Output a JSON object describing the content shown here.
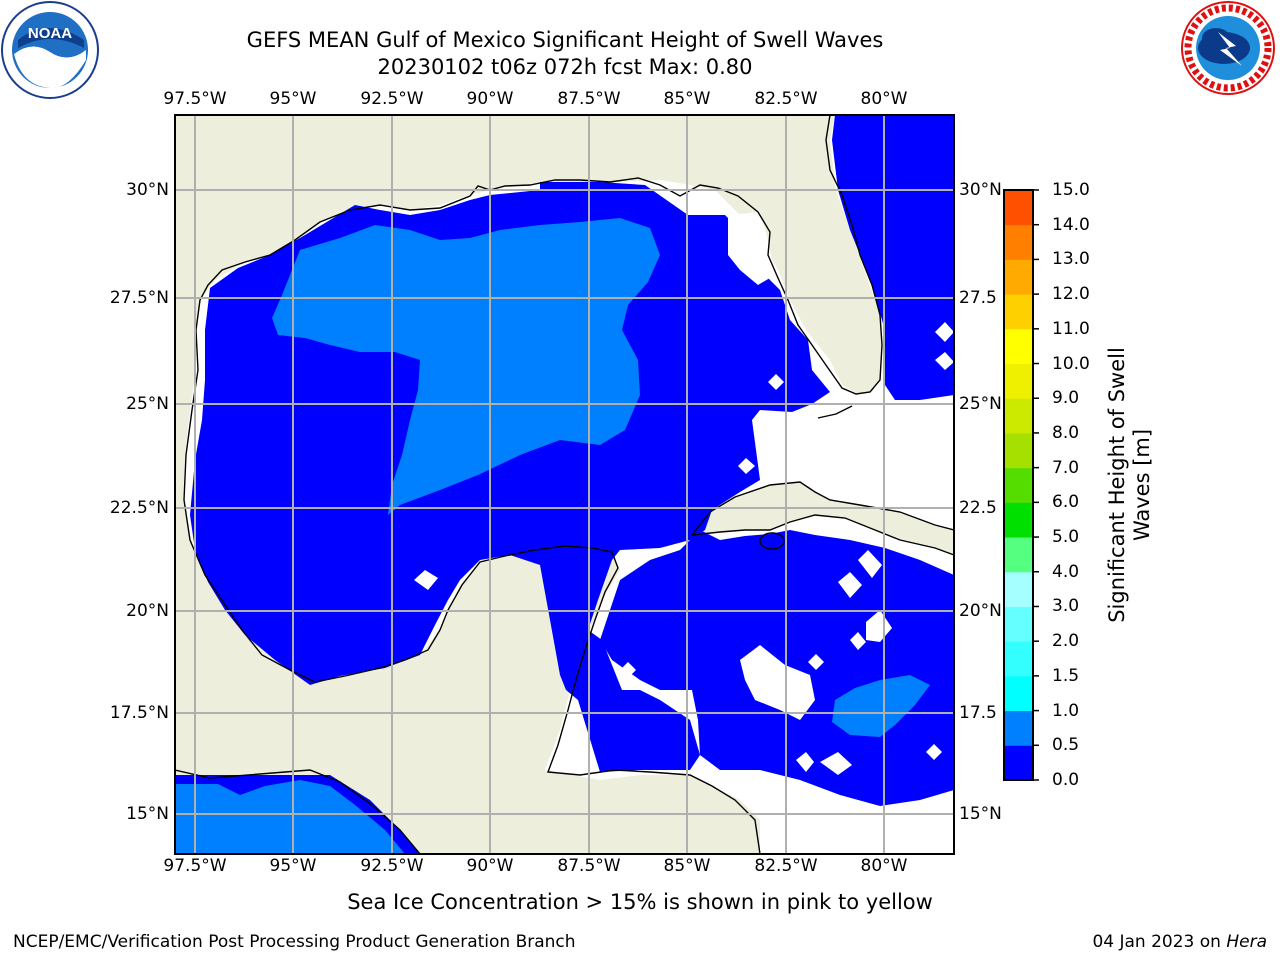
{
  "header": {
    "title_line1": "GEFS MEAN Gulf of Mexico Significant Height of Swell Waves",
    "title_line2": "20230102 t06z 072h fcst   Max: 0.80"
  },
  "logos": {
    "left": "NOAA",
    "left_ring_text": "NATIONAL OCEANIC AND ATMOSPHERIC ADMINISTRATION · U.S. DEPARTMENT OF COMMERCE",
    "right_ring_text": "NATIONAL WEATHER SERVICE"
  },
  "map": {
    "lon_labels": [
      "97.5°W",
      "95°W",
      "92.5°W",
      "90°W",
      "87.5°W",
      "85°W",
      "82.5°W",
      "80°W"
    ],
    "lat_labels_left": [
      "30°N",
      "27.5°N",
      "25°N",
      "22.5°N",
      "20°N",
      "17.5°N",
      "15°N"
    ],
    "lat_labels_right": [
      "30°N",
      "27.5",
      "25°N",
      "22.5",
      "20°N",
      "17.5",
      "15°N"
    ],
    "colors": {
      "land": "#eeeedc",
      "no_data": "#ffffff",
      "swell_0_0_5": "#0000ff",
      "swell_0_5_1_0": "#0080ff",
      "grid": "#b0b0b0"
    }
  },
  "colorbar": {
    "title_line1": "Significant Height of Swell",
    "title_line2": "Waves [m]",
    "tick_labels": [
      "0.0",
      "0.5",
      "1.0",
      "1.5",
      "2.0",
      "3.0",
      "4.0",
      "5.0",
      "6.0",
      "7.0",
      "8.0",
      "9.0",
      "10.0",
      "11.0",
      "12.0",
      "13.0",
      "14.0",
      "15.0"
    ],
    "colors": [
      "#0000ff",
      "#0080ff",
      "#00ffff",
      "#33ffff",
      "#66ffff",
      "#a6ffff",
      "#55ff80",
      "#00e000",
      "#55dd00",
      "#a6e000",
      "#ccea00",
      "#eef000",
      "#ffff00",
      "#ffd000",
      "#ffaa00",
      "#ff8000",
      "#ff5000",
      "#ff1a00"
    ]
  },
  "caption": "Sea Ice Concentration > 15% is shown in pink to yellow",
  "footer": {
    "left": "NCEP/EMC/Verification Post Processing Product Generation Branch",
    "right_date": "04 Jan 2023 on ",
    "right_host": "Hera"
  }
}
